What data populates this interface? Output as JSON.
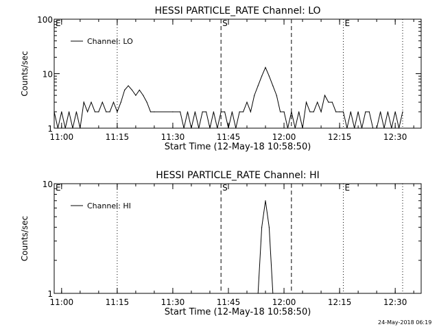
{
  "footer": {
    "timestamp": "24-May-2018 06:19"
  },
  "chart_data": [
    {
      "type": "line",
      "title": "HESSI PARTICLE_RATE Channel: LO",
      "xlabel": "Start Time (12-May-18 10:58:50)",
      "ylabel": "Counts/sec",
      "yscale": "log",
      "ylim": [
        1,
        100
      ],
      "xlim": [
        "10:58",
        "12:37"
      ],
      "x_ticks": [
        "11:00",
        "11:15",
        "11:30",
        "11:45",
        "12:00",
        "12:15",
        "12:30"
      ],
      "y_ticks": [
        "1",
        "10",
        "100"
      ],
      "legend": {
        "entry": "Channel: LO",
        "placement": "top-left"
      },
      "markers": [
        {
          "label": "E",
          "time": "10:58",
          "style": "dotted"
        },
        {
          "label": "",
          "time": "11:15",
          "style": "dotted"
        },
        {
          "label": "S",
          "time": "11:43",
          "style": "dashed"
        },
        {
          "label": "",
          "time": "12:02",
          "style": "dashed"
        },
        {
          "label": "E",
          "time": "12:16",
          "style": "dotted"
        },
        {
          "label": "",
          "time": "12:32",
          "style": "dotted"
        }
      ],
      "series": [
        {
          "x": [
            "10:58",
            "10:59",
            "11:00",
            "11:01",
            "11:02",
            "11:03",
            "11:04",
            "11:05",
            "11:06",
            "11:07",
            "11:08",
            "11:09",
            "11:10",
            "11:11",
            "11:12",
            "11:13",
            "11:14",
            "11:15",
            "11:16",
            "11:17",
            "11:18",
            "11:19",
            "11:20",
            "11:21",
            "11:22",
            "11:23",
            "11:24",
            "11:25",
            "11:30",
            "11:32",
            "11:33",
            "11:34",
            "11:35",
            "11:36",
            "11:37",
            "11:38",
            "11:39",
            "11:40",
            "11:41",
            "11:42",
            "11:43",
            "11:44",
            "11:45",
            "11:46",
            "11:47",
            "11:48",
            "11:49",
            "11:50",
            "11:51",
            "11:52",
            "11:53",
            "11:54",
            "11:55",
            "11:56",
            "11:57",
            "11:58",
            "11:59",
            "12:00",
            "12:01",
            "12:02",
            "12:03",
            "12:04",
            "12:05",
            "12:06",
            "12:07",
            "12:08",
            "12:09",
            "12:10",
            "12:11",
            "12:12",
            "12:13",
            "12:14",
            "12:15",
            "12:16",
            "12:17",
            "12:18",
            "12:19",
            "12:20",
            "12:21",
            "12:22",
            "12:23",
            "12:24",
            "12:25",
            "12:26",
            "12:27",
            "12:28",
            "12:29",
            "12:30",
            "12:31",
            "12:32"
          ],
          "y": [
            2,
            1,
            2,
            1,
            2,
            1,
            2,
            1,
            3,
            2,
            3,
            2,
            2,
            3,
            2,
            2,
            3,
            2,
            3,
            5,
            6,
            5,
            4,
            5,
            4,
            3,
            2,
            2,
            2,
            2,
            1,
            2,
            1,
            2,
            1,
            2,
            2,
            1,
            2,
            1,
            2,
            2,
            1,
            2,
            1,
            2,
            2,
            3,
            2,
            4,
            6,
            9,
            13,
            9,
            6,
            4,
            2,
            2,
            1,
            2,
            1,
            2,
            1,
            3,
            2,
            2,
            3,
            2,
            4,
            3,
            3,
            2,
            2,
            2,
            1,
            2,
            1,
            2,
            1,
            2,
            2,
            1,
            1,
            2,
            1,
            2,
            1,
            2,
            1,
            2
          ]
        }
      ]
    },
    {
      "type": "line",
      "title": "HESSI PARTICLE_RATE Channel: HI",
      "xlabel": "Start Time (12-May-18 10:58:50)",
      "ylabel": "Counts/sec",
      "yscale": "log",
      "ylim": [
        1,
        10
      ],
      "xlim": [
        "10:58",
        "12:37"
      ],
      "x_ticks": [
        "11:00",
        "11:15",
        "11:30",
        "11:45",
        "12:00",
        "12:15",
        "12:30"
      ],
      "y_ticks": [
        "1",
        "10"
      ],
      "legend": {
        "entry": "Channel: HI",
        "placement": "top-left"
      },
      "markers": [
        {
          "label": "E",
          "time": "10:58",
          "style": "dotted"
        },
        {
          "label": "",
          "time": "11:15",
          "style": "dotted"
        },
        {
          "label": "S",
          "time": "11:43",
          "style": "dashed"
        },
        {
          "label": "",
          "time": "12:02",
          "style": "dashed"
        },
        {
          "label": "E",
          "time": "12:16",
          "style": "dotted"
        },
        {
          "label": "",
          "time": "12:32",
          "style": "dotted"
        }
      ],
      "series": [
        {
          "x": [
            "11:53",
            "11:54",
            "11:55",
            "11:56",
            "11:57"
          ],
          "y": [
            1,
            4,
            7,
            4,
            1
          ]
        }
      ]
    }
  ]
}
